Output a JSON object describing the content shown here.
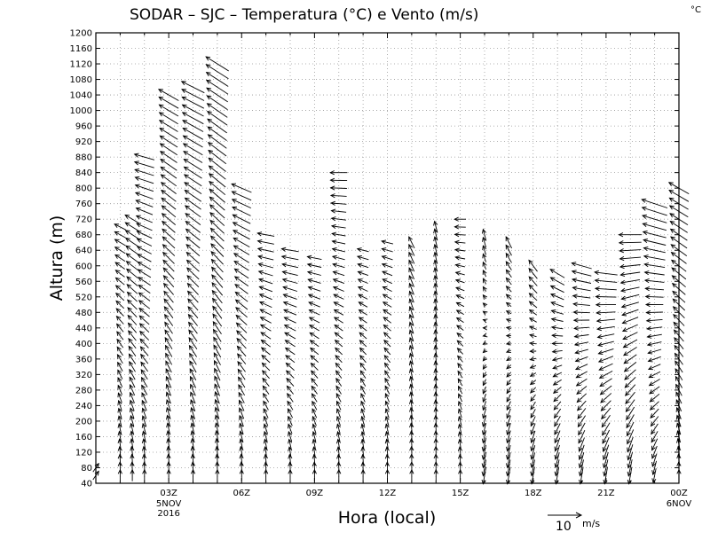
{
  "chart_data": {
    "type": "wind-barb-profile",
    "title": "SODAR – SJC – Temperatura (°C) e Vento (m/s)",
    "corner_unit": "°C",
    "xlabel": "Hora (local)",
    "ylabel": "Altura (m)",
    "ylim": [
      40,
      1200
    ],
    "y_ticks": [
      40,
      80,
      120,
      160,
      200,
      240,
      280,
      320,
      360,
      400,
      440,
      480,
      520,
      560,
      600,
      640,
      680,
      720,
      760,
      800,
      840,
      880,
      920,
      960,
      1000,
      1040,
      1080,
      1120,
      1160,
      1200
    ],
    "xlim": [
      0,
      24
    ],
    "x_ticks": [
      {
        "x": 3,
        "label": "03Z",
        "sub1": "5NOV",
        "sub2": "2016"
      },
      {
        "x": 6,
        "label": "06Z"
      },
      {
        "x": 9,
        "label": "09Z"
      },
      {
        "x": 12,
        "label": "12Z"
      },
      {
        "x": 15,
        "label": "15Z"
      },
      {
        "x": 18,
        "label": "18Z"
      },
      {
        "x": 21,
        "label": "21Z"
      },
      {
        "x": 24,
        "label": "00Z",
        "sub1": "6NOV"
      }
    ],
    "grid": true,
    "reference_vector": {
      "value": "10",
      "unit": "m/s"
    },
    "times": [
      0.0,
      1.0,
      1.5,
      2.0,
      3.0,
      4.0,
      5.0,
      6.0,
      7.0,
      8.0,
      9.0,
      10.0,
      11.0,
      12.0,
      13.0,
      14.0,
      15.0,
      16.0,
      17.0,
      18.0,
      19.0,
      20.0,
      21.0,
      22.0,
      23.0,
      24.0
    ],
    "profiles": [
      {
        "t": 0.0,
        "top": 80,
        "u_low": 2,
        "v_low": 3,
        "u_high": 2,
        "v_high": 3
      },
      {
        "t": 1.0,
        "top": 710,
        "u_low": 0,
        "v_low": 4,
        "u_high": -4,
        "v_high": 2
      },
      {
        "t": 1.5,
        "top": 720,
        "u_low": 0,
        "v_low": 4,
        "u_high": -5,
        "v_high": 3
      },
      {
        "t": 2.0,
        "top": 880,
        "u_low": 0,
        "v_low": 4,
        "u_high": -7,
        "v_high": 2
      },
      {
        "t": 3.0,
        "top": 1040,
        "u_low": 0,
        "v_low": 4,
        "u_high": -7,
        "v_high": 4
      },
      {
        "t": 4.0,
        "top": 1060,
        "u_low": 0,
        "v_low": 4,
        "u_high": -8,
        "v_high": 4
      },
      {
        "t": 5.0,
        "top": 1120,
        "u_low": 0,
        "v_low": 4,
        "u_high": -8,
        "v_high": 5
      },
      {
        "t": 6.0,
        "top": 800,
        "u_low": 0,
        "v_low": 4,
        "u_high": -7,
        "v_high": 3
      },
      {
        "t": 7.0,
        "top": 690,
        "u_low": 0,
        "v_low": 4,
        "u_high": -6,
        "v_high": 1
      },
      {
        "t": 8.0,
        "top": 640,
        "u_low": 0,
        "v_low": 4,
        "u_high": -6,
        "v_high": 1
      },
      {
        "t": 9.0,
        "top": 620,
        "u_low": 0,
        "v_low": 4,
        "u_high": -5,
        "v_high": 1
      },
      {
        "t": 10.0,
        "top": 840,
        "u_low": 0,
        "v_low": 4,
        "u_high": -6,
        "v_high": 0
      },
      {
        "t": 11.0,
        "top": 640,
        "u_low": 0,
        "v_low": 4,
        "u_high": -4,
        "v_high": 1
      },
      {
        "t": 12.0,
        "top": 660,
        "u_low": 0,
        "v_low": 4,
        "u_high": -4,
        "v_high": 1
      },
      {
        "t": 13.0,
        "top": 670,
        "u_low": 0,
        "v_low": 4,
        "u_high": -2,
        "v_high": 4
      },
      {
        "t": 14.0,
        "top": 700,
        "u_low": 0,
        "v_low": 4,
        "u_high": -1,
        "v_high": 4
      },
      {
        "t": 15.0,
        "top": 720,
        "u_low": 0,
        "v_low": 4,
        "u_high": -4,
        "v_high": 0
      },
      {
        "t": 16.0,
        "top": 690,
        "u_low": -1,
        "v_low": -6,
        "u_high": -1,
        "v_high": 4
      },
      {
        "t": 17.0,
        "top": 660,
        "u_low": -1,
        "v_low": -6,
        "u_high": -2,
        "v_high": 4
      },
      {
        "t": 18.0,
        "top": 600,
        "u_low": -1,
        "v_low": -6,
        "u_high": -3,
        "v_high": 4
      },
      {
        "t": 19.0,
        "top": 580,
        "u_low": -1,
        "v_low": -6,
        "u_high": -5,
        "v_high": 3
      },
      {
        "t": 20.0,
        "top": 600,
        "u_low": -1,
        "v_low": -6,
        "u_high": -7,
        "v_high": 2
      },
      {
        "t": 21.0,
        "top": 580,
        "u_low": -1,
        "v_low": -6,
        "u_high": -8,
        "v_high": 1
      },
      {
        "t": 22.0,
        "top": 680,
        "u_low": -1,
        "v_low": -6,
        "u_high": -8,
        "v_high": 0
      },
      {
        "t": 23.0,
        "top": 760,
        "u_low": -1,
        "v_low": -5,
        "u_high": -9,
        "v_high": 3
      },
      {
        "t": 24.0,
        "top": 800,
        "u_low": 0,
        "v_low": 4,
        "u_high": -7,
        "v_high": 4
      }
    ]
  }
}
